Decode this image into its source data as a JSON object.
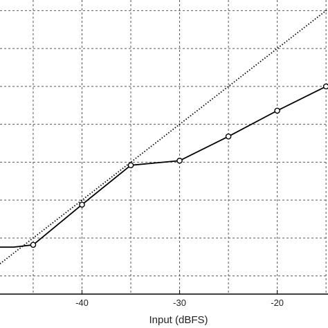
{
  "chart_data": {
    "type": "line",
    "xlabel": "Input (dBFS)",
    "ylabel": "",
    "title": "",
    "x_ticks": [
      -40,
      -30,
      -20
    ],
    "xlim": [
      -48.4,
      -14.8
    ],
    "ylim": [
      -52.4,
      -13.6
    ],
    "grid": true,
    "reference_line": {
      "style": "dotted",
      "color": "#000000",
      "points": [
        [
          -48.4,
          -48.4
        ],
        [
          -14.8,
          -14.8
        ]
      ]
    },
    "series": [
      {
        "style": "solid",
        "marker": "circle",
        "color": "#000000",
        "x": [
          -48.4,
          -47,
          -45,
          -40,
          -35,
          -30,
          -25,
          -20,
          -15,
          -14.8
        ],
        "y": [
          -46.2,
          -46.2,
          -45.9,
          -40.6,
          -35.4,
          -34.8,
          -31.6,
          -28.2,
          -25.0,
          -24.7
        ],
        "marker_x": [
          -45,
          -40,
          -35,
          -30,
          -25,
          -20,
          -15
        ],
        "marker_y": [
          -45.9,
          -40.6,
          -35.4,
          -34.8,
          -31.6,
          -28.2,
          -25.0
        ]
      }
    ]
  }
}
